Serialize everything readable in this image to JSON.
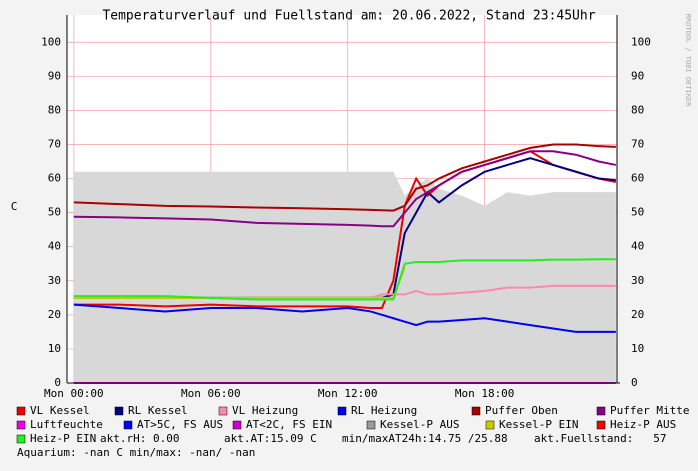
{
  "chart_data": {
    "type": "line",
    "title": "Temperaturverlauf und Fuellstand am: 20.06.2022, Stand 23:45Uhr",
    "y_label": "C",
    "side_note": "RRDTOOL / TOBI OETIKER",
    "x": [
      0,
      2,
      4,
      6,
      8,
      10,
      12,
      13,
      13.5,
      14,
      14.5,
      15,
      15.5,
      16,
      17,
      18,
      19,
      20,
      21,
      22,
      23,
      23.75
    ],
    "xlim": [
      -0.3,
      23.8
    ],
    "xticks": [
      {
        "value": 0,
        "label": "Mon 00:00"
      },
      {
        "value": 6,
        "label": "Mon 06:00"
      },
      {
        "value": 12,
        "label": "Mon 12:00"
      },
      {
        "value": 18,
        "label": "Mon 18:00"
      }
    ],
    "ylim": [
      0,
      108
    ],
    "yticks": [
      0,
      10,
      20,
      30,
      40,
      50,
      60,
      70,
      80,
      90,
      100
    ],
    "grid": true,
    "series": [
      {
        "name": "Kessel-P AUS",
        "color": "#999999",
        "style": "area",
        "values": [
          62,
          62,
          62,
          62,
          62,
          62,
          62,
          62,
          62,
          62,
          55,
          58,
          60,
          57,
          55,
          52,
          56,
          55,
          56,
          56,
          56,
          56
        ]
      },
      {
        "name": "VL Kessel",
        "color": "#ee0000",
        "values": [
          23,
          23,
          22.5,
          23,
          22.5,
          22.5,
          22.5,
          22,
          22,
          30,
          52,
          60,
          55,
          58,
          62,
          64,
          66,
          68,
          64,
          62,
          60,
          59
        ]
      },
      {
        "name": "RL Kessel",
        "color": "#000080",
        "values": [
          25,
          25,
          25,
          25,
          25,
          25,
          25,
          25,
          25,
          26,
          44,
          50,
          56,
          53,
          58,
          62,
          64,
          66,
          64,
          62,
          60,
          59.5
        ]
      },
      {
        "name": "VL Heizung",
        "color": "#ff88aa",
        "values": [
          25,
          25,
          25,
          25,
          25,
          25,
          25,
          25,
          26,
          26,
          26,
          27,
          26,
          26,
          26.5,
          27,
          28,
          28,
          28.5,
          28.5,
          28.5,
          28.5
        ]
      },
      {
        "name": "RL Heizung",
        "color": "#0000ee",
        "values": [
          23,
          22,
          21,
          22,
          22,
          21,
          22,
          21,
          20,
          19,
          18,
          17,
          18,
          18,
          18.5,
          19,
          18,
          17,
          16,
          15,
          15,
          15
        ]
      },
      {
        "name": "Puffer Oben",
        "color": "#aa0000",
        "values": [
          53,
          52.5,
          52,
          51.8,
          51.5,
          51.3,
          51,
          50.8,
          50.7,
          50.6,
          52,
          57,
          58,
          60,
          63,
          65,
          67,
          69,
          70,
          70,
          69.5,
          69.3
        ]
      },
      {
        "name": "Puffer Mitte",
        "color": "#880088",
        "values": [
          48.8,
          48.6,
          48.3,
          48,
          47,
          46.7,
          46.4,
          46.2,
          46,
          46,
          50,
          54,
          56,
          58,
          62,
          64,
          66,
          68,
          68,
          67,
          65,
          64
        ]
      },
      {
        "name": "Luftfeuchte",
        "color": "#ee00ee",
        "values": [
          0,
          0,
          0,
          0,
          0,
          0,
          0,
          0,
          0,
          0,
          0,
          0,
          0,
          0,
          0,
          0,
          0,
          0,
          0,
          0,
          0,
          0
        ]
      },
      {
        "name": "AT>5C, FS AUS",
        "color": "#0000ff"
      },
      {
        "name": "AT<2C, FS EIN",
        "color": "#cc00cc"
      },
      {
        "name": "Kessel-P EIN",
        "color": "#cccc00",
        "values": [
          25,
          25,
          25,
          25,
          25,
          25,
          25,
          25,
          25,
          25,
          34,
          null,
          null,
          null,
          null,
          null,
          null,
          null,
          null,
          null,
          null,
          null
        ]
      },
      {
        "name": "Heiz-P AUS",
        "color": "#ff0000"
      },
      {
        "name": "Heiz-P EIN",
        "color": "#22ee22",
        "values": [
          25.5,
          25.5,
          25.5,
          25,
          24.5,
          24.5,
          24.5,
          24.5,
          24.5,
          24.5,
          35,
          35.5,
          35.5,
          35.5,
          36,
          36,
          36,
          36,
          36.2,
          36.2,
          36.3,
          36.3
        ]
      }
    ],
    "legend_order": [
      1,
      2,
      3,
      4,
      5,
      6,
      7,
      8,
      9,
      0,
      10,
      11,
      12
    ],
    "stats": [
      "akt.rH: 0.00",
      "akt.AT:15.09 C",
      "min/maxAT24h:14.75 /25.88",
      "akt.Fuellstand:   57"
    ],
    "footer": "Aquarium: -nan C  min/max: -nan/ -nan"
  }
}
